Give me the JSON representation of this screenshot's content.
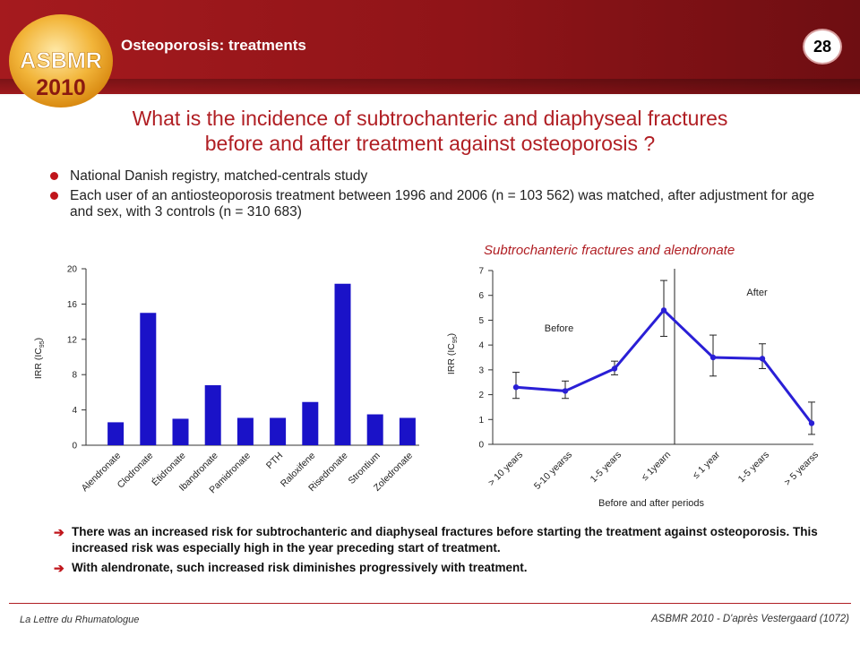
{
  "header": {
    "logo_text": "ASBMR",
    "logo_year": "2010",
    "slide_title": "Osteoporosis: treatments",
    "page_number": "28",
    "colors": {
      "header": "#9a1519",
      "accent": "#b01e23",
      "bars": "#1a12c8",
      "line": "#2a1fd6"
    }
  },
  "question": {
    "line1": "What is the incidence of subtrochanteric and diaphyseal  fractures",
    "line2": "before and after treatment against osteoporosis ?"
  },
  "bullets": [
    "National Danish registry, matched-centrals study",
    "Each user of an antiosteoporosis treatment between 1996 and 2006 (n = 103 562) was matched, after adjustment for age and sex, with 3 controls (n = 310 683)"
  ],
  "chart_data": [
    {
      "type": "bar",
      "ylabel": "IRR (IC95)",
      "ylim": [
        0,
        20
      ],
      "yticks": [
        "0",
        "4",
        "8",
        "12",
        "16",
        "20"
      ],
      "categories": [
        "Alendronate",
        "Clodronate",
        "Étidronate",
        "Ibandronate",
        "Pamidronate",
        "PTH",
        "Raloxifene",
        "Risedronate",
        "Strontium",
        "Zoledronate"
      ],
      "values": [
        2.6,
        15.0,
        3.0,
        6.8,
        3.1,
        3.1,
        4.9,
        18.3,
        3.5,
        3.1
      ],
      "grid": false
    },
    {
      "type": "line",
      "title": "Subtrochanteric fractures  and alendronate",
      "xlabel": "Before and after periods",
      "ylabel": "IRR (IC95)",
      "ylim": [
        0,
        7
      ],
      "yticks": [
        "0",
        "1",
        "2",
        "3",
        "4",
        "5",
        "6",
        "7"
      ],
      "categories": [
        "> 10 years",
        "5-10 yearss",
        "1-5 years",
        "≤ 1yearn",
        "≤ 1 year",
        "1-5 years",
        "> 5 yearss"
      ],
      "values": [
        2.3,
        2.15,
        3.05,
        5.4,
        3.5,
        3.45,
        0.85
      ],
      "ci_low": [
        1.85,
        1.85,
        2.8,
        4.35,
        2.75,
        3.05,
        0.4
      ],
      "ci_high": [
        2.9,
        2.55,
        3.35,
        6.6,
        4.4,
        4.05,
        1.7
      ],
      "annotations": [
        "Before",
        "After"
      ],
      "grid": false
    }
  ],
  "conclusions": [
    "There was an increased risk for subtrochanteric and diaphyseal fractures before starting the treatment against osteoporosis. This increased risk was especially high in the year preceding start of treatment.",
    "With alendronate, such increased risk diminishes progressively with treatment."
  ],
  "footer": {
    "left": "La Lettre du Rhumatologue",
    "right": "ASBMR 2010 - D'après Vestergaard (1072)"
  }
}
